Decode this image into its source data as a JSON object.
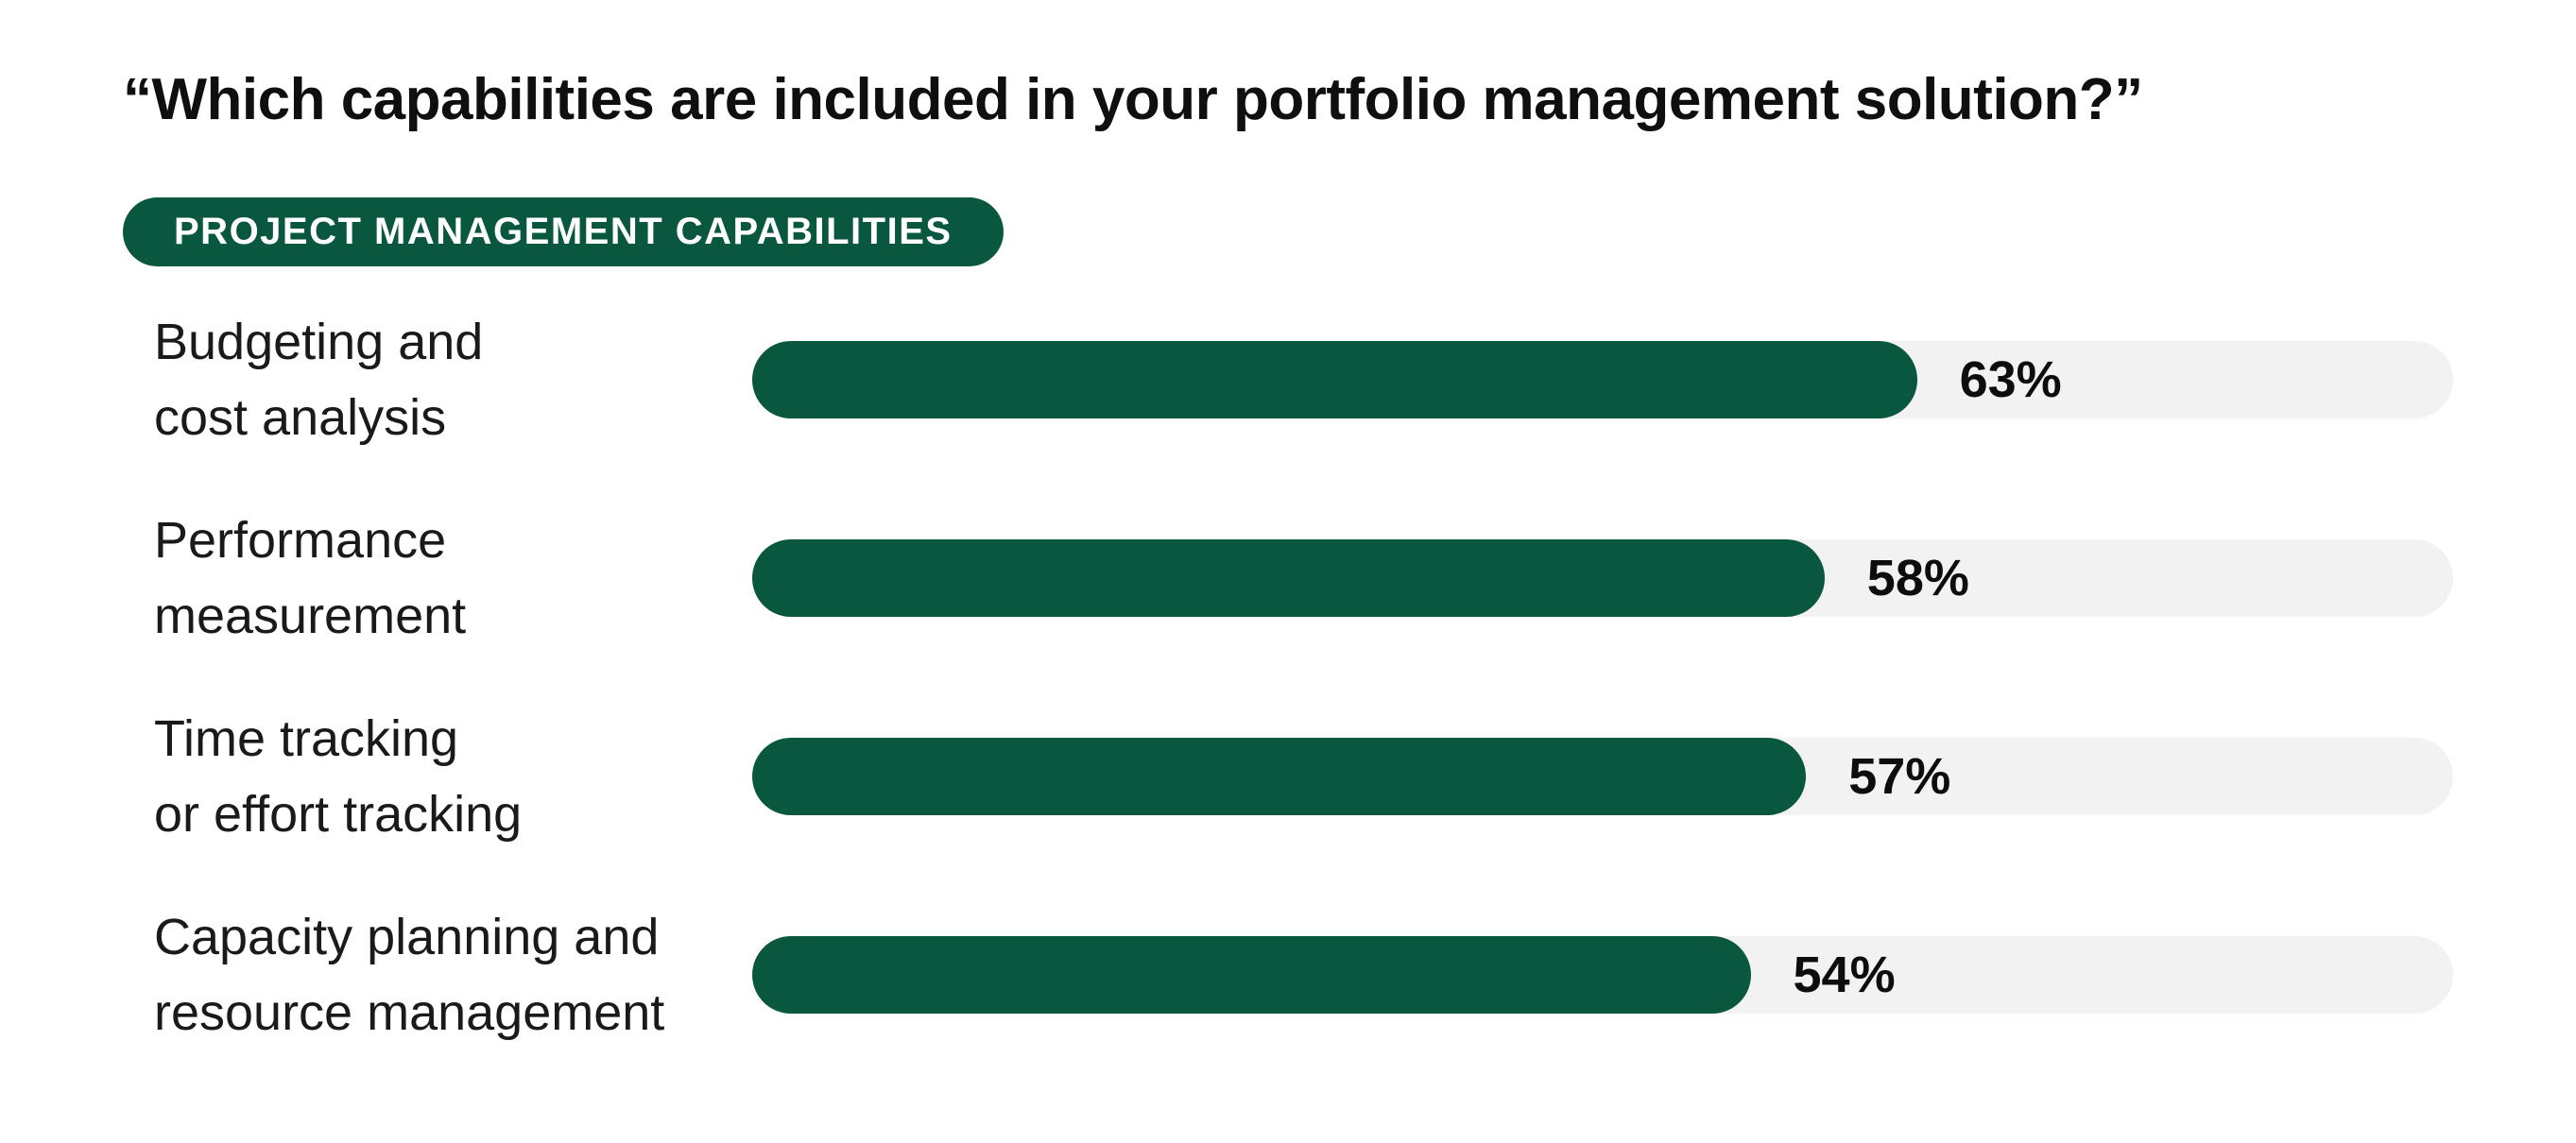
{
  "title": "“Which capabilities are included in your portfolio management solution?”",
  "badge": {
    "label": "PROJECT MANAGEMENT CAPABILITIES"
  },
  "row_labels": [
    {
      "line1": "Budgeting and",
      "line2": "cost analysis"
    },
    {
      "line1": "Performance",
      "line2": "measurement"
    },
    {
      "line1": "Time tracking",
      "line2": "or effort tracking"
    },
    {
      "line1": "Capacity planning and",
      "line2": "resource management"
    }
  ],
  "chart_data": {
    "type": "bar",
    "orientation": "horizontal",
    "title": "“Which capabilities are included in your portfolio management solution?”",
    "group_label": "PROJECT MANAGEMENT CAPABILITIES",
    "categories": [
      "Budgeting and cost analysis",
      "Performance measurement",
      "Time tracking or effort tracking",
      "Capacity planning and resource management"
    ],
    "values": [
      63,
      58,
      57,
      54
    ],
    "value_labels": [
      "63%",
      "58%",
      "57%",
      "54%"
    ],
    "unit": "%",
    "xlim": [
      0,
      92
    ],
    "grid": false,
    "legend": false,
    "value_label_position": "after-fill-on-track"
  },
  "colors": {
    "bar_green": "#0A5740",
    "badge_green": "#0A5740",
    "track_gray": "#F2F2F2",
    "text_black": "#0F0F0F",
    "label_color": "#1A1A1A"
  }
}
